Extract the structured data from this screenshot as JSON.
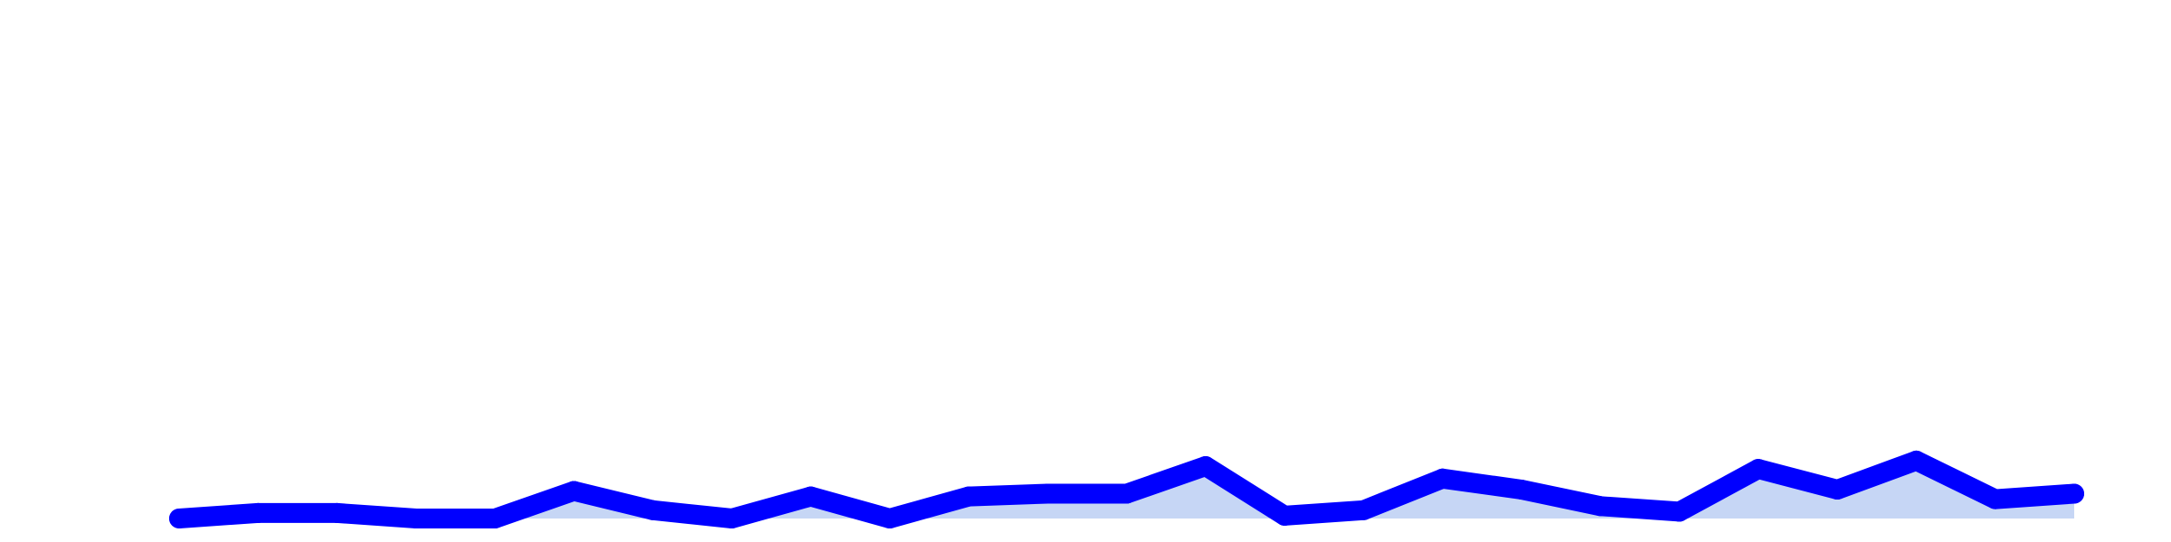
{
  "chart_data": {
    "type": "area",
    "x": [
      1,
      2,
      3,
      4,
      5,
      6,
      7,
      8,
      9,
      10,
      11,
      12,
      13,
      14,
      15,
      16,
      17,
      18,
      19,
      20,
      21,
      22,
      23,
      24,
      25
    ],
    "series": [
      {
        "values": [
          0.0,
          0.4,
          0.4,
          0.0,
          0.0,
          2.0,
          0.6,
          0.0,
          1.6,
          0.0,
          1.6,
          1.8,
          1.8,
          3.8,
          0.2,
          0.6,
          2.9,
          2.1,
          0.9,
          0.5,
          3.6,
          2.1,
          4.2,
          1.4,
          1.8
        ]
      }
    ],
    "ylim": [
      0,
      35
    ],
    "grid": false,
    "colors": {
      "line": "#0000ff",
      "fill": "#c6d6f5",
      "background": "#ffffff"
    }
  }
}
